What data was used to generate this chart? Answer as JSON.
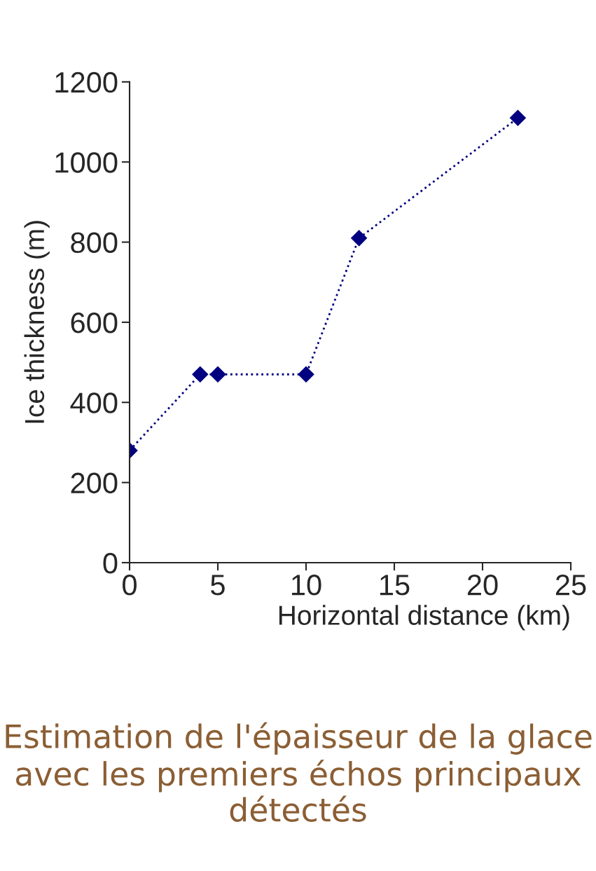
{
  "chart_data": {
    "type": "line",
    "xlabel": "Horizontal distance (km)",
    "ylabel": "Ice thickness (m)",
    "x": [
      0,
      4,
      5,
      10,
      13,
      22
    ],
    "series": [
      {
        "color": "#000080",
        "values": [
          280,
          470,
          470,
          470,
          810,
          1110
        ]
      }
    ],
    "xlim": [
      0,
      25
    ],
    "xticks": [
      0,
      5,
      10,
      15,
      20,
      25
    ],
    "ylim": [
      0,
      1200
    ],
    "yticks": [
      0,
      200,
      400,
      600,
      800,
      1000,
      1200
    ],
    "grid": false,
    "legend": false,
    "marker": "diamond",
    "line_style": "dotted",
    "annotations": [
      "Estimation de l'épaisseur de la glace avec les premiers échos principaux détectés"
    ]
  }
}
